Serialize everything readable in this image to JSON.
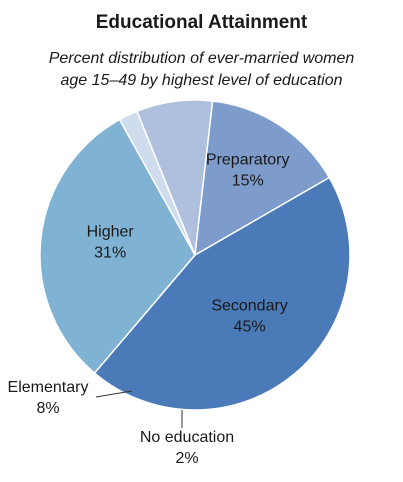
{
  "title": "Educational Attainment",
  "subtitle": [
    "Percent distribution of ever-married women",
    "age 15–49 by highest level of education"
  ],
  "colors": {
    "Secondary": "#4a7ab8",
    "Higher": "#7fb2d3",
    "Preparatory": "#7d9ccb",
    "Elementary": "#aec0dd",
    "No education": "#cfdcee"
  },
  "chart_data": {
    "type": "pie",
    "title": "Educational Attainment",
    "subtitle": "Percent distribution of ever-married women age 15–49 by highest level of education",
    "categories": [
      "Secondary",
      "Higher",
      "No education",
      "Elementary",
      "Preparatory"
    ],
    "values": [
      45,
      31,
      2,
      8,
      15
    ],
    "value_labels": [
      "45%",
      "31%",
      "2%",
      "8%",
      "15%"
    ]
  }
}
